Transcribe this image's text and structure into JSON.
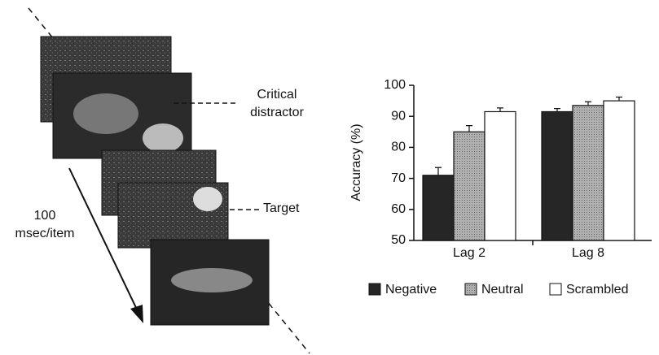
{
  "diagram": {
    "critical_label": [
      "Critical",
      "distractor"
    ],
    "target_label": "Target",
    "rate_label": [
      "100",
      "msec/item"
    ]
  },
  "chart_data": {
    "type": "bar",
    "y_label": "Accuracy (%)",
    "categories": [
      "Lag 2",
      "Lag 8"
    ],
    "series": [
      {
        "name": "Negative",
        "color": "#262626",
        "values": [
          71,
          91.5
        ],
        "errors": [
          2.5,
          1
        ]
      },
      {
        "name": "Neutral",
        "color": "#9c9c9c",
        "values": [
          85,
          93.5
        ],
        "errors": [
          2,
          1.2
        ]
      },
      {
        "name": "Scrambled",
        "color": "#ffffff",
        "values": [
          91.5,
          95
        ],
        "errors": [
          1.2,
          1.2
        ]
      }
    ],
    "ylim": [
      50,
      100
    ],
    "yticks": [
      50,
      60,
      70,
      80,
      90,
      100
    ],
    "grid": false,
    "legend": "bottom"
  }
}
